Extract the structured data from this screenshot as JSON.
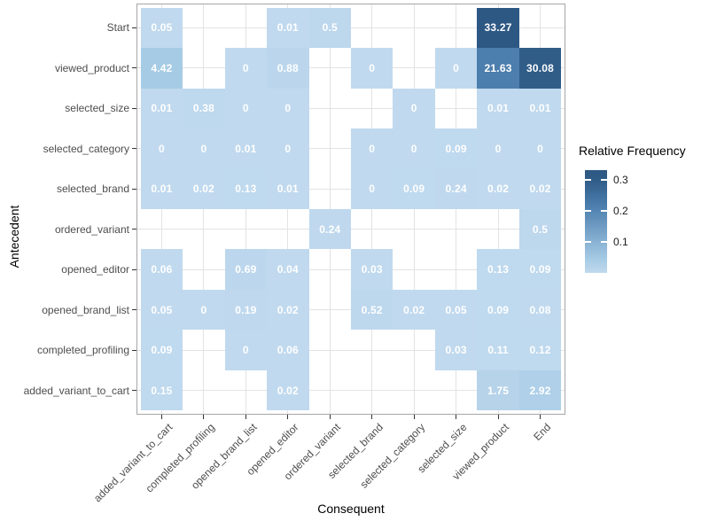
{
  "figure": {
    "background": "#FFFFFF",
    "panel_border_color": "#A6A6A6",
    "grid_color": "#E3E3E3",
    "axis_text_color": "#4D4D4D",
    "title_color": "#000000",
    "cell_text_color": "#FFFFFF"
  },
  "chart_data": {
    "type": "heatmap",
    "title": "",
    "xlabel": "Consequent",
    "ylabel": "Antecedent",
    "x_categories": [
      "added_variant_to_cart",
      "completed_profiling",
      "opened_brand_list",
      "opened_editor",
      "ordered_variant",
      "selected_brand",
      "selected_category",
      "selected_size",
      "viewed_product",
      "End"
    ],
    "y_categories": [
      "Start",
      "viewed_product",
      "selected_size",
      "selected_category",
      "selected_brand",
      "ordered_variant",
      "opened_editor",
      "opened_brand_list",
      "completed_profiling",
      "added_variant_to_cart"
    ],
    "values": [
      [
        0.05,
        null,
        null,
        0.01,
        0.5,
        null,
        null,
        null,
        33.27,
        null
      ],
      [
        4.42,
        null,
        0,
        0.88,
        null,
        0,
        null,
        0,
        21.63,
        30.08
      ],
      [
        0.01,
        0.38,
        0,
        0,
        null,
        null,
        0,
        null,
        0.01,
        0.01
      ],
      [
        0,
        0,
        0.01,
        0,
        null,
        0,
        0,
        0.09,
        0,
        0
      ],
      [
        0.01,
        0.02,
        0.13,
        0.01,
        null,
        0,
        0.09,
        0.24,
        0.02,
        0.02
      ],
      [
        null,
        null,
        null,
        null,
        0.24,
        null,
        null,
        null,
        null,
        0.5
      ],
      [
        0.06,
        null,
        0.69,
        0.04,
        null,
        0.03,
        null,
        null,
        0.13,
        0.09
      ],
      [
        0.05,
        0,
        0.19,
        0.02,
        null,
        0.52,
        0.02,
        0.05,
        0.09,
        0.08
      ],
      [
        0.09,
        null,
        0,
        0.06,
        null,
        null,
        null,
        0.03,
        0.11,
        0.12
      ],
      [
        0.15,
        null,
        null,
        0.02,
        null,
        null,
        null,
        null,
        1.75,
        2.92
      ]
    ],
    "color_scale": {
      "domain_max": 33.27,
      "stops": [
        {
          "t": 0,
          "color": "#C0D9EE"
        },
        {
          "t": 0.133,
          "color": "#A6CBE5"
        },
        {
          "t": 0.65,
          "color": "#4C7EAE"
        },
        {
          "t": 0.9,
          "color": "#305C88"
        },
        {
          "t": 1,
          "color": "#2D5884"
        }
      ]
    },
    "legend": {
      "title": "Relative Frequency",
      "ticks": [
        0.3,
        0.2,
        0.1
      ],
      "scale_max": 0.3327
    }
  }
}
